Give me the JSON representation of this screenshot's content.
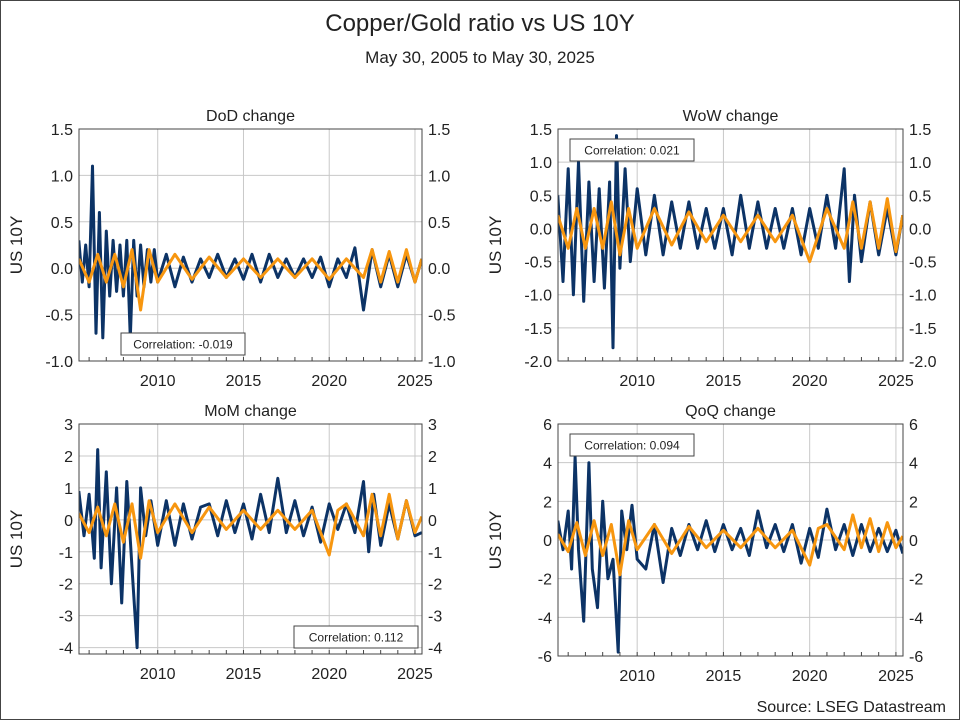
{
  "title": "Copper/Gold ratio vs US 10Y",
  "subtitle": "May 30, 2005 to May 30, 2025",
  "source": "Source: LSEG Datastream",
  "colors": {
    "us10y": "#0c3366",
    "copper_gold": "#f7960f",
    "grid": "#c8c8c8",
    "frame": "#444444"
  },
  "chart_data": [
    {
      "type": "line",
      "title": "DoD change",
      "ylabel": "US 10Y",
      "xlim": [
        2005.41,
        2025.41
      ],
      "ylim": [
        -1.0,
        1.5
      ],
      "yticks": [
        "-1.0",
        "-0.5",
        "0.0",
        "0.5",
        "1.0",
        "1.5"
      ],
      "ytick_values": [
        -1.0,
        -0.5,
        0.0,
        0.5,
        1.0,
        1.5
      ],
      "xticks": [
        "2010",
        "2015",
        "2020",
        "2025"
      ],
      "xtick_values": [
        2010,
        2015,
        2020,
        2025
      ],
      "correlation_label": "Correlation: -0.019",
      "label_position": "bottom-left",
      "series": [
        {
          "x": [
            2005.4,
            2005.6,
            2005.8,
            2006.0,
            2006.2,
            2006.4,
            2006.6,
            2006.8,
            2007.0,
            2007.2,
            2007.4,
            2007.6,
            2007.8,
            2008.0,
            2008.2,
            2008.4,
            2008.6,
            2008.8,
            2009.0,
            2009.2,
            2009.4,
            2009.6,
            2009.8,
            2010.0,
            2010.5,
            2011.0,
            2011.5,
            2012.0,
            2012.5,
            2013.0,
            2013.5,
            2014.0,
            2014.5,
            2015.0,
            2015.5,
            2016.0,
            2016.5,
            2017.0,
            2017.5,
            2018.0,
            2018.5,
            2019.0,
            2019.5,
            2020.0,
            2020.5,
            2021.0,
            2021.5,
            2022.0,
            2022.5,
            2023.0,
            2023.5,
            2024.0,
            2024.5,
            2025.0,
            2025.4
          ],
          "values": [
            0.3,
            -0.15,
            0.25,
            -0.2,
            1.1,
            -0.7,
            0.6,
            -0.75,
            0.4,
            -0.3,
            0.3,
            -0.25,
            0.25,
            -0.3,
            0.3,
            -0.75,
            0.3,
            -0.3,
            0.25,
            -0.2,
            0.2,
            -0.15,
            0.2,
            -0.15,
            0.15,
            -0.2,
            0.12,
            -0.15,
            0.1,
            -0.1,
            0.15,
            -0.1,
            0.1,
            -0.12,
            0.15,
            -0.15,
            0.15,
            -0.1,
            0.1,
            -0.1,
            0.1,
            -0.1,
            0.12,
            -0.2,
            0.1,
            -0.1,
            0.22,
            -0.45,
            0.2,
            -0.2,
            0.15,
            -0.2,
            0.15,
            -0.15,
            0.1
          ]
        },
        {
          "x": [
            2005.4,
            2006.0,
            2006.5,
            2007.0,
            2007.5,
            2008.0,
            2008.5,
            2009.0,
            2009.5,
            2010.0,
            2011.0,
            2012.0,
            2013.0,
            2014.0,
            2015.0,
            2016.0,
            2017.0,
            2018.0,
            2019.0,
            2020.0,
            2021.0,
            2022.0,
            2022.5,
            2023.0,
            2023.5,
            2024.0,
            2024.5,
            2025.0,
            2025.4
          ],
          "values": [
            0.1,
            -0.15,
            0.15,
            -0.15,
            0.15,
            -0.2,
            0.2,
            -0.45,
            0.2,
            -0.15,
            0.15,
            -0.12,
            0.12,
            -0.1,
            0.1,
            -0.1,
            0.1,
            -0.1,
            0.1,
            -0.12,
            0.1,
            -0.1,
            0.2,
            -0.15,
            0.18,
            -0.15,
            0.2,
            -0.15,
            0.1
          ]
        }
      ]
    },
    {
      "type": "line",
      "title": "WoW change",
      "ylabel": "US 10Y",
      "xlim": [
        2005.41,
        2025.41
      ],
      "ylim": [
        -2.0,
        1.5
      ],
      "yticks": [
        "-2.0",
        "-1.5",
        "-1.0",
        "-0.5",
        "0.0",
        "0.5",
        "1.0",
        "1.5"
      ],
      "ytick_values": [
        -2.0,
        -1.5,
        -1.0,
        -0.5,
        0.0,
        0.5,
        1.0,
        1.5
      ],
      "xticks": [
        "2010",
        "2015",
        "2020",
        "2025"
      ],
      "xtick_values": [
        2010,
        2015,
        2020,
        2025
      ],
      "correlation_label": "Correlation: 0.021",
      "label_position": "top-left",
      "series": [
        {
          "x": [
            2005.4,
            2005.7,
            2006.0,
            2006.3,
            2006.6,
            2006.9,
            2007.2,
            2007.5,
            2007.8,
            2008.1,
            2008.4,
            2008.6,
            2008.8,
            2009.0,
            2009.3,
            2009.6,
            2010.0,
            2010.5,
            2011.0,
            2011.5,
            2012.0,
            2012.5,
            2013.0,
            2013.5,
            2014.0,
            2014.5,
            2015.0,
            2015.5,
            2016.0,
            2016.5,
            2017.0,
            2017.5,
            2018.0,
            2018.5,
            2019.0,
            2019.5,
            2020.0,
            2020.5,
            2021.0,
            2021.5,
            2022.0,
            2022.3,
            2022.6,
            2023.0,
            2023.5,
            2024.0,
            2024.5,
            2025.0,
            2025.4
          ],
          "values": [
            0.5,
            -0.8,
            0.9,
            -1.0,
            1.0,
            -1.1,
            0.7,
            -0.8,
            0.6,
            -0.9,
            0.7,
            -1.8,
            1.4,
            -0.6,
            0.9,
            -0.5,
            0.6,
            -0.4,
            0.5,
            -0.4,
            0.4,
            -0.3,
            0.4,
            -0.3,
            0.3,
            -0.3,
            0.3,
            -0.4,
            0.5,
            -0.3,
            0.4,
            -0.3,
            0.3,
            -0.3,
            0.3,
            -0.4,
            0.3,
            -0.3,
            0.5,
            -0.3,
            0.9,
            -0.8,
            0.5,
            -0.5,
            0.4,
            -0.4,
            0.3,
            -0.4,
            0.2
          ]
        },
        {
          "x": [
            2005.4,
            2006.0,
            2006.5,
            2007.0,
            2007.5,
            2008.0,
            2008.5,
            2009.0,
            2009.5,
            2010.0,
            2011.0,
            2012.0,
            2013.0,
            2014.0,
            2015.0,
            2016.0,
            2017.0,
            2018.0,
            2019.0,
            2020.0,
            2021.0,
            2022.0,
            2022.5,
            2023.0,
            2023.5,
            2024.0,
            2024.5,
            2025.0,
            2025.4
          ],
          "values": [
            0.2,
            -0.3,
            0.3,
            -0.3,
            0.3,
            -0.3,
            0.4,
            -0.4,
            0.3,
            -0.3,
            0.3,
            -0.25,
            0.25,
            -0.2,
            0.2,
            -0.2,
            0.2,
            -0.2,
            0.2,
            -0.5,
            0.3,
            -0.3,
            0.4,
            -0.3,
            0.4,
            -0.3,
            0.45,
            -0.35,
            0.2
          ]
        }
      ]
    },
    {
      "type": "line",
      "title": "MoM change",
      "ylabel": "US 10Y",
      "xlim": [
        2005.41,
        2025.41
      ],
      "ylim": [
        -4.2,
        3.0
      ],
      "yticks": [
        "-4",
        "-3",
        "-2",
        "-1",
        "0",
        "1",
        "2",
        "3"
      ],
      "ytick_values": [
        -4,
        -3,
        -2,
        -1,
        0,
        1,
        2,
        3
      ],
      "xticks": [
        "2010",
        "2015",
        "2020",
        "2025"
      ],
      "xtick_values": [
        2010,
        2015,
        2020,
        2025
      ],
      "correlation_label": "Correlation: 0.112",
      "label_position": "bottom-right",
      "series": [
        {
          "x": [
            2005.4,
            2005.7,
            2006.0,
            2006.3,
            2006.5,
            2006.7,
            2007.0,
            2007.3,
            2007.6,
            2007.9,
            2008.2,
            2008.5,
            2008.8,
            2009.0,
            2009.3,
            2009.6,
            2010.0,
            2010.5,
            2011.0,
            2011.5,
            2012.0,
            2012.5,
            2013.0,
            2013.5,
            2014.0,
            2014.5,
            2015.0,
            2015.5,
            2016.0,
            2016.5,
            2017.0,
            2017.5,
            2018.0,
            2018.5,
            2019.0,
            2019.5,
            2020.0,
            2020.5,
            2021.0,
            2021.5,
            2022.0,
            2022.3,
            2022.6,
            2023.0,
            2023.5,
            2024.0,
            2024.5,
            2025.0,
            2025.4
          ],
          "values": [
            0.9,
            -0.5,
            0.8,
            -1.2,
            2.2,
            -1.5,
            1.5,
            -2.0,
            1.0,
            -2.6,
            1.2,
            -1.5,
            -4.0,
            1.0,
            -0.5,
            0.6,
            -0.8,
            0.6,
            -0.8,
            0.5,
            -0.6,
            0.4,
            0.5,
            -0.5,
            0.6,
            -0.4,
            0.5,
            -0.6,
            0.8,
            -0.4,
            1.3,
            -0.4,
            0.6,
            -0.5,
            0.4,
            -0.7,
            0.5,
            -0.3,
            0.5,
            -0.4,
            1.2,
            -1.0,
            0.8,
            -0.8,
            0.5,
            -0.6,
            0.6,
            -0.5,
            -0.4
          ]
        },
        {
          "x": [
            2005.4,
            2006.0,
            2006.5,
            2007.0,
            2007.5,
            2008.0,
            2008.5,
            2009.0,
            2009.5,
            2010.0,
            2011.0,
            2012.0,
            2013.0,
            2014.0,
            2015.0,
            2016.0,
            2017.0,
            2018.0,
            2019.0,
            2020.0,
            2020.5,
            2021.0,
            2022.0,
            2022.5,
            2023.0,
            2023.5,
            2024.0,
            2024.5,
            2025.0,
            2025.4
          ],
          "values": [
            0.2,
            -0.4,
            0.4,
            -0.5,
            0.5,
            -0.7,
            0.5,
            -1.2,
            0.6,
            -0.4,
            0.5,
            -0.4,
            0.4,
            -0.3,
            0.3,
            -0.3,
            0.3,
            -0.3,
            0.3,
            -1.1,
            0.3,
            0.5,
            -0.5,
            0.8,
            -0.5,
            0.8,
            -0.6,
            0.6,
            -0.4,
            0.1
          ]
        }
      ]
    },
    {
      "type": "line",
      "title": "QoQ change",
      "ylabel": "US 10Y",
      "xlim": [
        2005.41,
        2025.41
      ],
      "ylim": [
        -6.0,
        6.0
      ],
      "yticks": [
        "-6",
        "-4",
        "-2",
        "0",
        "2",
        "4",
        "6"
      ],
      "ytick_values": [
        -6,
        -4,
        -2,
        0,
        2,
        4,
        6
      ],
      "xticks": [
        "2010",
        "2015",
        "2020",
        "2025"
      ],
      "xtick_values": [
        2010,
        2015,
        2020,
        2025
      ],
      "correlation_label": "Correlation: 0.094",
      "label_position": "top-left",
      "series": [
        {
          "x": [
            2005.4,
            2005.7,
            2006.0,
            2006.2,
            2006.4,
            2006.6,
            2006.9,
            2007.2,
            2007.4,
            2007.7,
            2008.0,
            2008.3,
            2008.6,
            2008.9,
            2009.1,
            2009.4,
            2009.7,
            2010.0,
            2010.5,
            2011.0,
            2011.5,
            2012.0,
            2012.5,
            2013.0,
            2013.5,
            2014.0,
            2014.5,
            2015.0,
            2015.5,
            2016.0,
            2016.5,
            2017.0,
            2017.5,
            2018.0,
            2018.5,
            2019.0,
            2019.5,
            2020.0,
            2020.5,
            2021.0,
            2021.5,
            2022.0,
            2022.5,
            2023.0,
            2023.5,
            2024.0,
            2024.5,
            2025.0,
            2025.4
          ],
          "values": [
            1.0,
            -0.5,
            1.5,
            -1.5,
            4.3,
            -0.5,
            -4.2,
            4.0,
            -1.5,
            -3.5,
            2.0,
            -2.0,
            -1.0,
            -5.8,
            1.5,
            -0.5,
            1.8,
            -1.0,
            -1.5,
            0.8,
            -2.2,
            0.6,
            -0.8,
            0.8,
            -0.5,
            1.0,
            -0.6,
            0.8,
            -0.5,
            0.6,
            -0.8,
            1.5,
            -0.4,
            0.8,
            -0.6,
            0.8,
            -1.2,
            0.6,
            -0.9,
            1.6,
            -0.5,
            0.8,
            -0.8,
            0.8,
            -0.6,
            0.6,
            -0.6,
            0.5,
            -0.7
          ]
        },
        {
          "x": [
            2005.4,
            2006.0,
            2006.5,
            2007.0,
            2007.5,
            2008.0,
            2008.5,
            2009.0,
            2009.5,
            2010.0,
            2011.0,
            2012.0,
            2013.0,
            2014.0,
            2015.0,
            2016.0,
            2017.0,
            2018.0,
            2019.0,
            2020.0,
            2020.5,
            2021.0,
            2022.0,
            2022.5,
            2023.0,
            2023.5,
            2024.0,
            2024.5,
            2025.0,
            2025.4
          ],
          "values": [
            0.3,
            -0.6,
            0.9,
            -0.8,
            1.0,
            -0.8,
            0.8,
            -1.8,
            1.0,
            -0.5,
            0.8,
            -0.7,
            0.7,
            -0.4,
            0.5,
            -0.4,
            0.6,
            -0.4,
            0.5,
            -1.3,
            0.6,
            0.8,
            -0.5,
            1.3,
            -0.4,
            1.1,
            -0.6,
            0.9,
            -0.4,
            0.2
          ]
        }
      ]
    }
  ]
}
